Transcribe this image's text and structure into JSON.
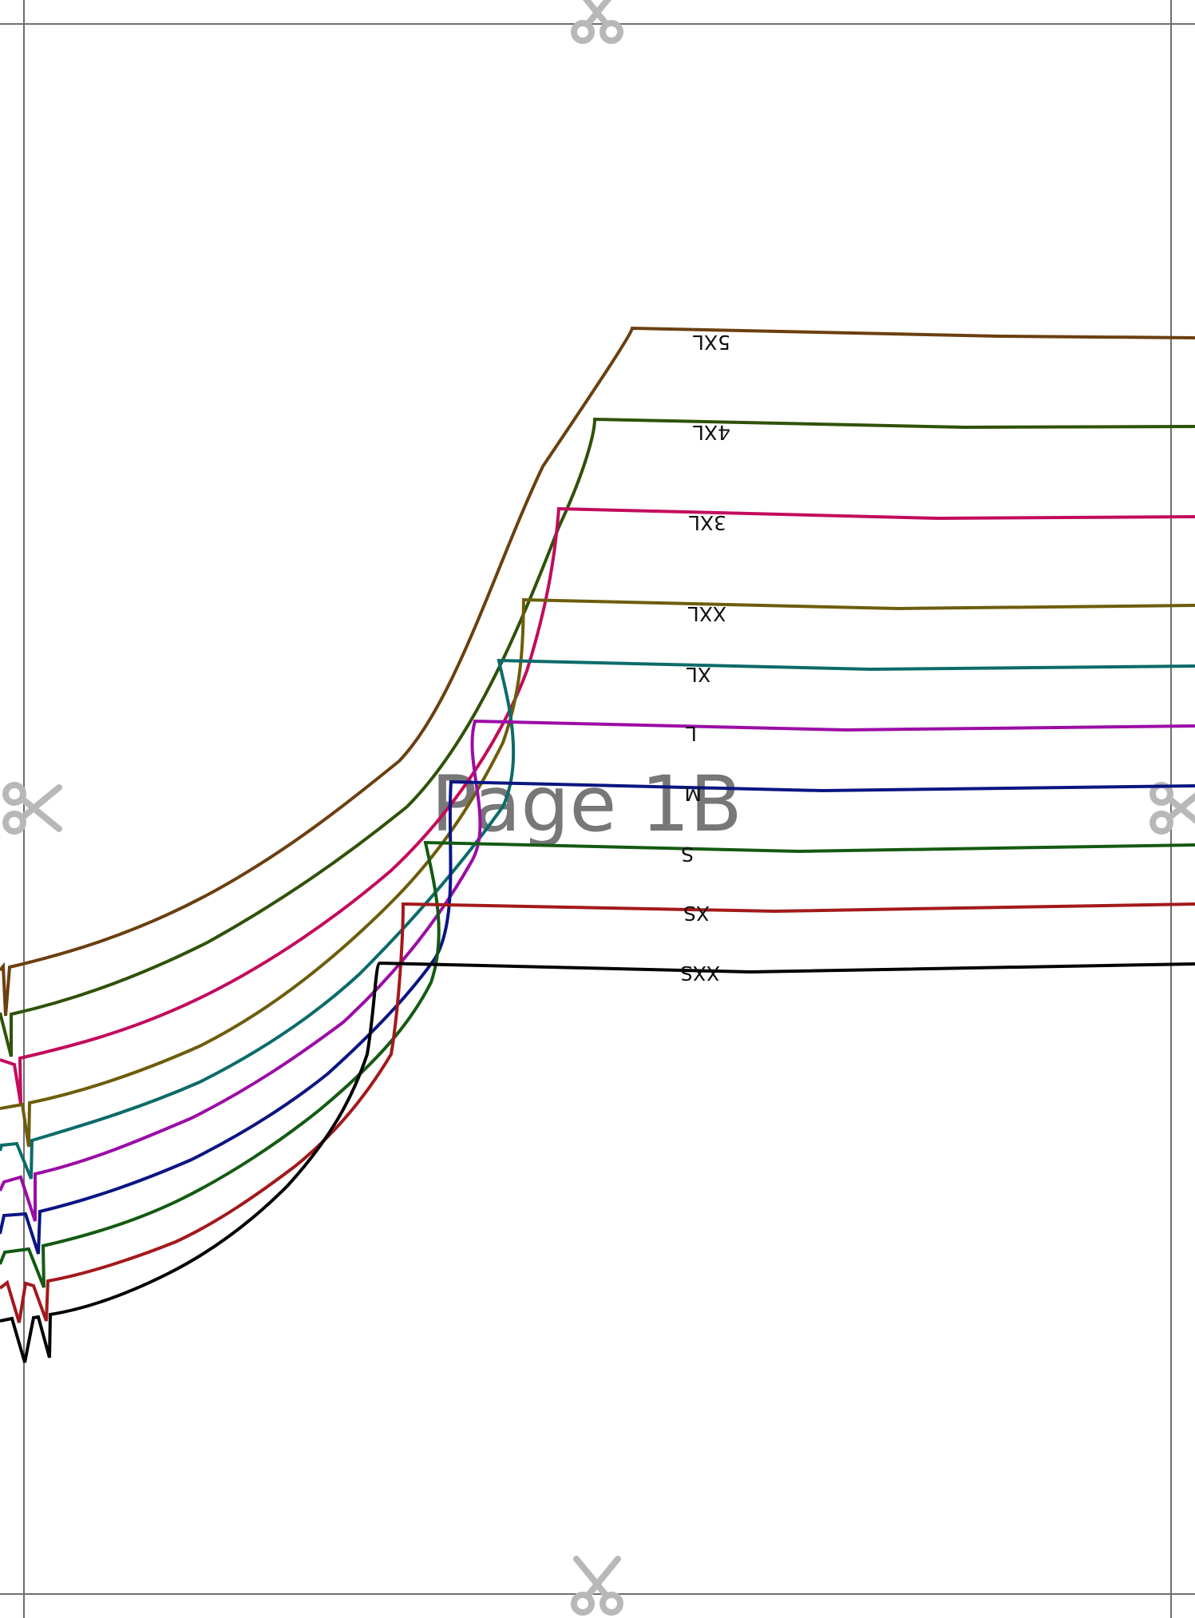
{
  "page": {
    "label": "Page 1B",
    "label_color": "#777777",
    "trim_color": "#6f6f6f",
    "scissors_color": "#b8b8b8"
  },
  "sizes": [
    {
      "name": "5XL",
      "color": "#6b3f10"
    },
    {
      "name": "4XL",
      "color": "#2f5209"
    },
    {
      "name": "3XL",
      "color": "#c30b5c"
    },
    {
      "name": "XXL",
      "color": "#6d5d0c"
    },
    {
      "name": "XL",
      "color": "#0b6b6a"
    },
    {
      "name": "L",
      "color": "#9b0ca6"
    },
    {
      "name": "M",
      "color": "#0b1582"
    },
    {
      "name": "S",
      "color": "#145a12"
    },
    {
      "name": "XS",
      "color": "#a3191b"
    },
    {
      "name": "XXS",
      "color": "#000000"
    }
  ],
  "icons": {
    "scissors": "scissors-icon"
  }
}
